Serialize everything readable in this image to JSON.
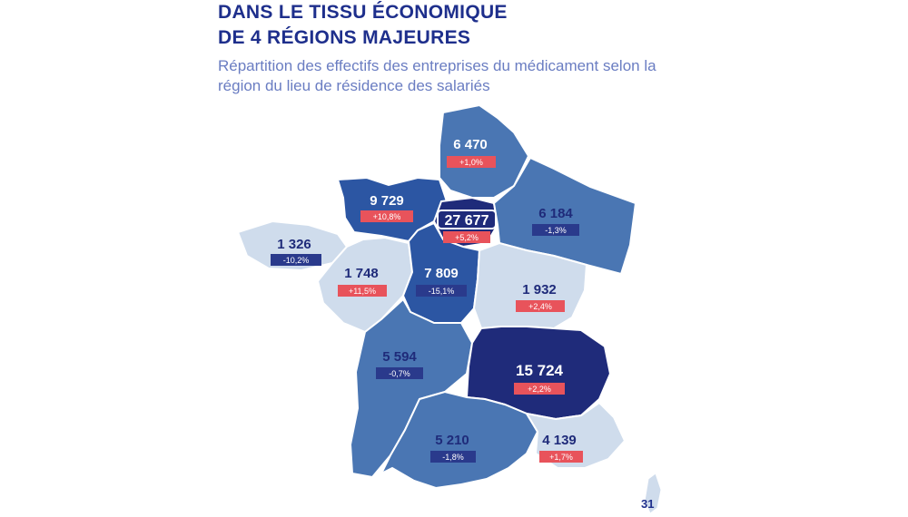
{
  "title": {
    "line1": "DANS LE TISSU ÉCONOMIQUE",
    "line2": "DE 4 RÉGIONS MAJEURES"
  },
  "subtitle": "Répartition des effectifs des entreprises du médicament selon la région du lieu de résidence des salariés",
  "colors": {
    "title": "#1e2f8c",
    "subtitle": "#6a7dc2",
    "darkest": "#1f2b7a",
    "dark": "#2c56a3",
    "medium": "#4a76b3",
    "light": "#cfdcec",
    "badge_red": "#e8535b",
    "badge_blue": "#2a3a8c"
  },
  "regions": [
    {
      "name": "normandie",
      "value": "9 729",
      "change": "+10,8%",
      "trend": "up"
    },
    {
      "name": "hauts-de-france",
      "value": "6 470",
      "change": "+1,0%",
      "trend": "up"
    },
    {
      "name": "ile-de-france",
      "value": "27 677",
      "change": "+5,2%",
      "trend": "up"
    },
    {
      "name": "grand-est",
      "value": "6 184",
      "change": "-1,3%",
      "trend": "down"
    },
    {
      "name": "bretagne",
      "value": "1 326",
      "change": "-10,2%",
      "trend": "down"
    },
    {
      "name": "pays-de-la-loire",
      "value": "1 748",
      "change": "+11,5%",
      "trend": "up"
    },
    {
      "name": "centre-val-de-loire",
      "value": "7 809",
      "change": "-15,1%",
      "trend": "down"
    },
    {
      "name": "bourgogne-franche-comte",
      "value": "1 932",
      "change": "+2,4%",
      "trend": "up"
    },
    {
      "name": "nouvelle-aquitaine",
      "value": "5 594",
      "change": "-0,7%",
      "trend": "down"
    },
    {
      "name": "auvergne-rhone-alpes",
      "value": "15 724",
      "change": "+2,2%",
      "trend": "up"
    },
    {
      "name": "occitanie",
      "value": "5 210",
      "change": "-1,8%",
      "trend": "down"
    },
    {
      "name": "provence-alpes-cote-dazur",
      "value": "4 139",
      "change": "+1,7%",
      "trend": "up"
    }
  ],
  "page_number": "31"
}
